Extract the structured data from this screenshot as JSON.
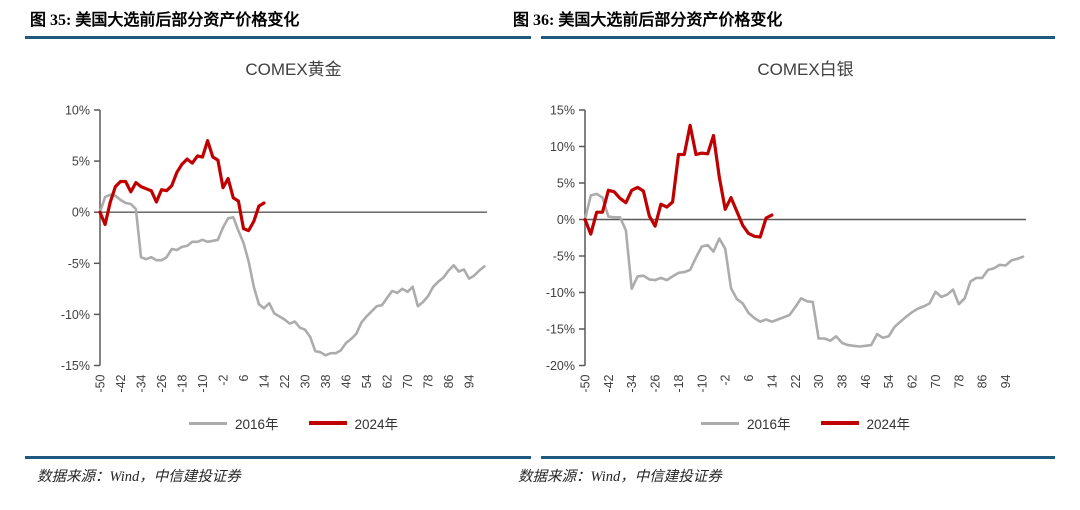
{
  "colors": {
    "rule_blue": "#1D5A7D",
    "axis": "#595959",
    "tick_text": "#404040",
    "series_2016": "#ACACAC",
    "series_2024": "#C00000"
  },
  "figures": [
    {
      "header": "图 35: 美国大选前后部分资产价格变化",
      "source": "数据来源：Wind，中信建投证券"
    },
    {
      "header": "图 36: 美国大选前后部分资产价格变化",
      "source": "数据来源：Wind，中信建投证券"
    }
  ],
  "chart_data": [
    {
      "type": "line",
      "title": "COMEX黄金",
      "xlabel": "",
      "ylabel": "",
      "xlim": [
        -50,
        101
      ],
      "ylim": [
        -15,
        10
      ],
      "x_ticks": [
        -50,
        -42,
        -34,
        -26,
        -18,
        -10,
        -2,
        6,
        14,
        22,
        30,
        38,
        46,
        54,
        62,
        70,
        78,
        86,
        94
      ],
      "y_ticks": [
        10,
        5,
        0,
        -5,
        -10,
        -15
      ],
      "y_tick_suffix": "%",
      "grid": false,
      "legend_position": "bottom",
      "series": [
        {
          "name": "2016年",
          "color": "#ACACAC",
          "x_start": -50,
          "x_step": 2,
          "values": [
            0.0,
            1.5,
            1.7,
            1.6,
            1.2,
            0.9,
            0.8,
            0.3,
            -4.4,
            -4.6,
            -4.4,
            -4.7,
            -4.7,
            -4.4,
            -3.6,
            -3.7,
            -3.4,
            -3.3,
            -2.9,
            -2.9,
            -2.7,
            -2.9,
            -2.8,
            -2.7,
            -1.5,
            -0.6,
            -0.5,
            -1.8,
            -3.0,
            -4.8,
            -7.3,
            -9.0,
            -9.4,
            -8.9,
            -9.9,
            -10.2,
            -10.5,
            -10.9,
            -10.7,
            -11.3,
            -11.5,
            -12.2,
            -13.6,
            -13.7,
            -14.0,
            -13.8,
            -13.8,
            -13.5,
            -12.8,
            -12.4,
            -11.9,
            -10.8,
            -10.2,
            -9.7,
            -9.2,
            -9.1,
            -8.4,
            -7.7,
            -7.9,
            -7.5,
            -7.8,
            -7.3,
            -9.2,
            -8.8,
            -8.2,
            -7.3,
            -6.8,
            -6.4,
            -5.7,
            -5.2,
            -5.8,
            -5.6,
            -6.5,
            -6.2,
            -5.7,
            -5.3
          ]
        },
        {
          "name": "2024年",
          "color": "#C00000",
          "x_start": -50,
          "x_step": 2,
          "values": [
            0.0,
            -1.2,
            1.0,
            2.5,
            3.0,
            3.0,
            2.0,
            2.9,
            2.5,
            2.3,
            2.1,
            1.0,
            2.2,
            2.1,
            2.6,
            3.9,
            4.7,
            5.2,
            4.8,
            5.5,
            5.4,
            7.0,
            5.4,
            5.1,
            2.4,
            3.3,
            1.4,
            1.1,
            -1.6,
            -1.8,
            -0.9,
            0.6,
            0.9
          ]
        }
      ]
    },
    {
      "type": "line",
      "title": "COMEX白银",
      "xlabel": "",
      "ylabel": "",
      "xlim": [
        -50,
        101
      ],
      "ylim": [
        -20,
        15
      ],
      "x_ticks": [
        -50,
        -42,
        -34,
        -26,
        -18,
        -10,
        -2,
        6,
        14,
        22,
        30,
        38,
        46,
        54,
        62,
        70,
        78,
        86,
        94
      ],
      "y_ticks": [
        15,
        10,
        5,
        0,
        -5,
        -10,
        -15,
        -20
      ],
      "y_tick_suffix": "%",
      "grid": false,
      "legend_position": "bottom",
      "series": [
        {
          "name": "2016年",
          "color": "#ACACAC",
          "x_start": -50,
          "x_step": 2,
          "values": [
            0.0,
            3.3,
            3.5,
            3.0,
            0.4,
            0.3,
            0.3,
            -1.5,
            -9.5,
            -7.8,
            -7.7,
            -8.2,
            -8.3,
            -8.0,
            -8.3,
            -7.8,
            -7.3,
            -7.2,
            -6.9,
            -5.2,
            -3.7,
            -3.5,
            -4.4,
            -2.6,
            -4.0,
            -9.4,
            -10.9,
            -11.5,
            -12.8,
            -13.5,
            -14.0,
            -13.7,
            -14.0,
            -13.7,
            -13.4,
            -13.1,
            -12.0,
            -10.8,
            -11.2,
            -11.3,
            -16.3,
            -16.3,
            -16.6,
            -16.0,
            -16.9,
            -17.2,
            -17.3,
            -17.4,
            -17.3,
            -17.2,
            -15.7,
            -16.2,
            -16.0,
            -14.7,
            -14.0,
            -13.3,
            -12.7,
            -12.2,
            -11.9,
            -11.5,
            -9.9,
            -10.6,
            -10.3,
            -9.6,
            -11.6,
            -10.8,
            -8.5,
            -8.0,
            -8.0,
            -6.9,
            -6.7,
            -6.2,
            -6.3,
            -5.6,
            -5.4,
            -5.1
          ]
        },
        {
          "name": "2024年",
          "color": "#C00000",
          "x_start": -50,
          "x_step": 2,
          "values": [
            0.0,
            -2.0,
            1.0,
            1.0,
            4.0,
            3.8,
            2.9,
            2.3,
            4.0,
            4.4,
            3.9,
            0.5,
            -0.9,
            2.1,
            1.7,
            2.4,
            8.9,
            8.9,
            12.9,
            8.9,
            9.1,
            9.0,
            11.5,
            5.8,
            1.4,
            3.0,
            1.1,
            -0.8,
            -1.9,
            -2.3,
            -2.4,
            0.2,
            0.6
          ]
        }
      ]
    }
  ]
}
